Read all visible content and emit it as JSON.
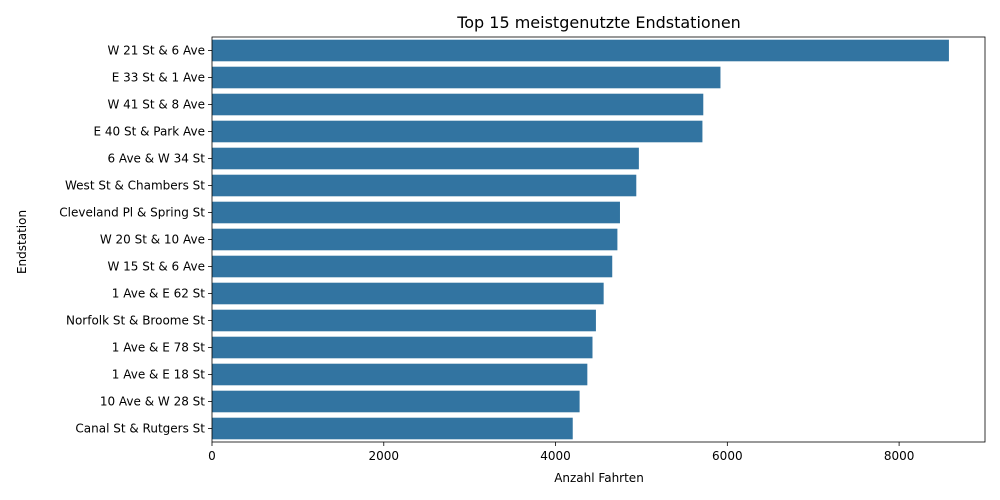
{
  "chart_data": {
    "type": "bar",
    "orientation": "horizontal",
    "title": "Top 15 meistgenutzte Endstationen",
    "xlabel": "Anzahl Fahrten",
    "ylabel": "Endstation",
    "categories": [
      "W 21 St & 6 Ave",
      "E 33 St & 1 Ave",
      "W 41 St & 8 Ave",
      "E 40 St & Park Ave",
      "6 Ave & W 34 St",
      "West St & Chambers St",
      "Cleveland Pl & Spring St",
      "W 20 St & 10 Ave",
      "W 15 St & 6 Ave",
      "1 Ave & E 62 St",
      "Norfolk St & Broome St",
      "1 Ave & E 78 St",
      "1 Ave & E 18 St",
      "10 Ave & W 28 St",
      "Canal St & Rutgers St"
    ],
    "values": [
      8580,
      5920,
      5720,
      5710,
      4970,
      4940,
      4750,
      4720,
      4660,
      4560,
      4470,
      4430,
      4370,
      4280,
      4200
    ],
    "xlim": [
      0,
      9000
    ],
    "xticks": [
      "0",
      "2000",
      "4000",
      "6000",
      "8000"
    ],
    "bar_color": "#3274a1",
    "grid": false
  }
}
